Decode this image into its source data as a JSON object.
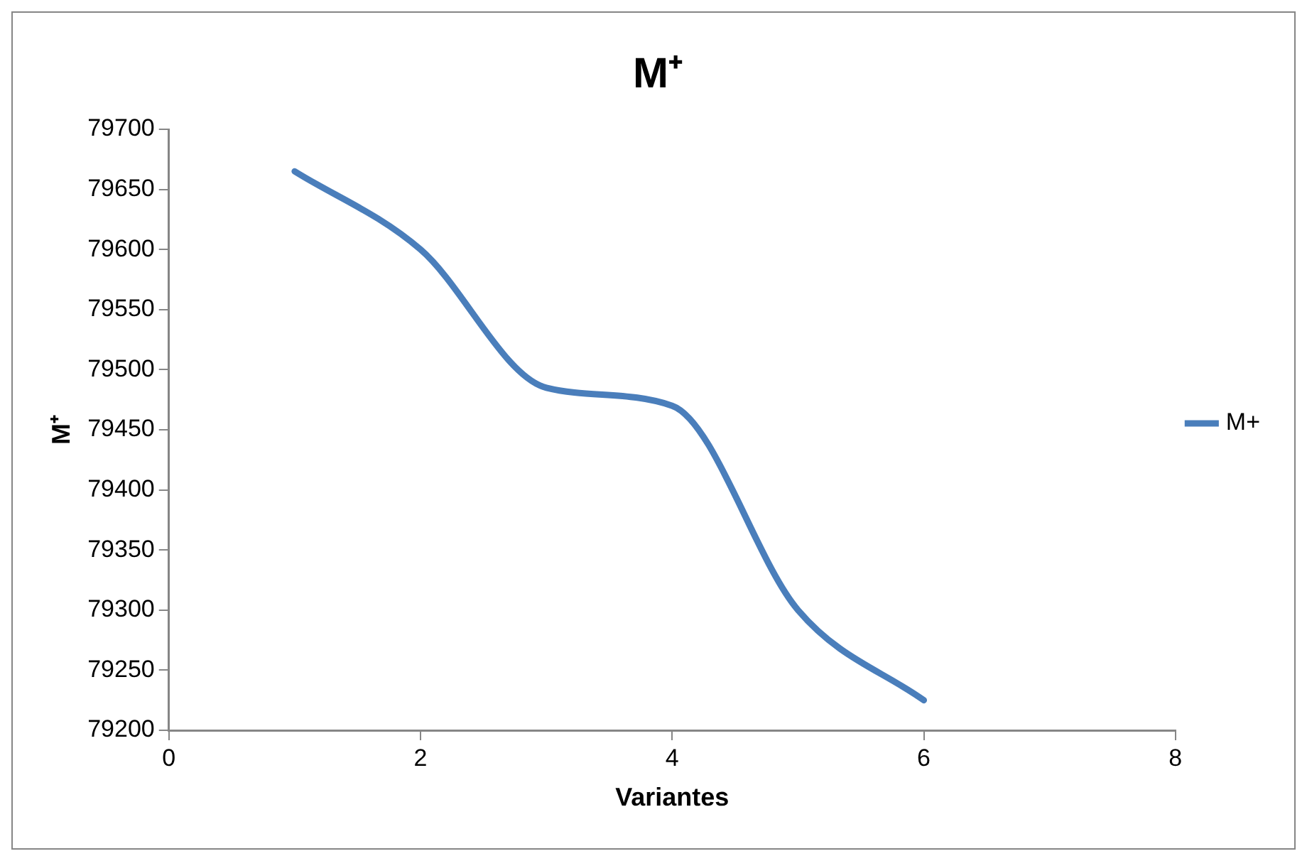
{
  "chart_data": {
    "type": "line",
    "title": "M⁺",
    "xlabel": "Variantes",
    "ylabel": "M⁺",
    "x": [
      1,
      2,
      3,
      4,
      5,
      6
    ],
    "series": [
      {
        "name": "M+",
        "color": "#4a7ebb",
        "values": [
          79665,
          79600,
          79485,
          79470,
          79300,
          79225
        ]
      }
    ],
    "xlim": [
      0,
      8
    ],
    "xticks": [
      0,
      2,
      4,
      6,
      8
    ],
    "ylim": [
      79200,
      79700
    ],
    "yticks": [
      79200,
      79250,
      79300,
      79350,
      79400,
      79450,
      79500,
      79550,
      79600,
      79650,
      79700
    ],
    "grid": false,
    "legend": "right",
    "marker": "none",
    "line_style": "solid"
  }
}
